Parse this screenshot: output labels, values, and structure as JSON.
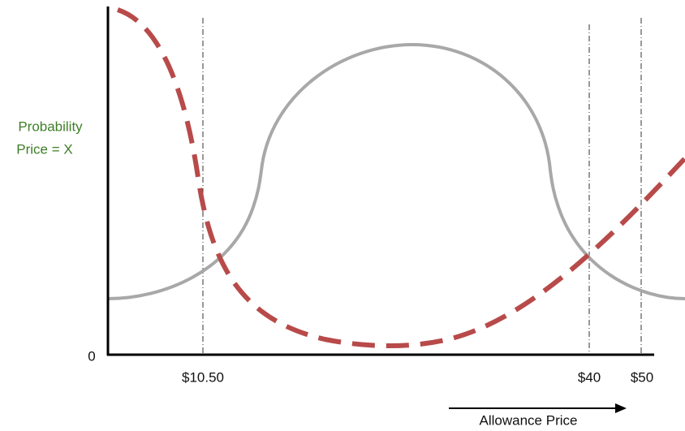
{
  "y_label": [
    "Probability",
    "Price = X"
  ],
  "y_origin": "0",
  "x_labels": [
    "$10.50",
    "$40",
    "$50"
  ],
  "x_axis_title": "Allowance Price"
}
